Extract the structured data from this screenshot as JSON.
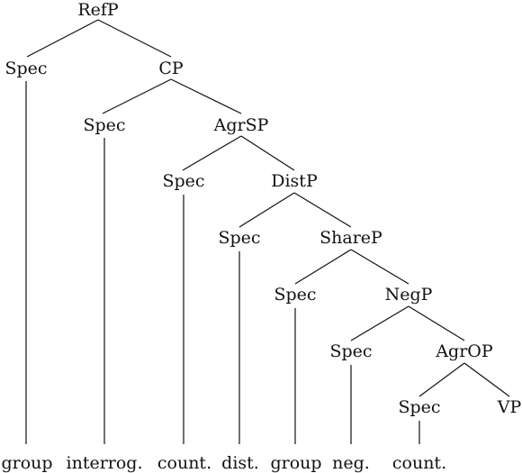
{
  "tree": {
    "nodes": {
      "refp": "RefP",
      "spec_ref": "Spec",
      "cp": "CP",
      "spec_cp": "Spec",
      "agrsp": "AgrSP",
      "spec_agrs": "Spec",
      "distp": "DistP",
      "spec_dist": "Spec",
      "sharep": "ShareP",
      "spec_share": "Spec",
      "negp": "NegP",
      "spec_neg": "Spec",
      "agrop": "AgrOP",
      "spec_agro": "Spec",
      "vp": "VP"
    },
    "leaves": {
      "spec_ref": "group",
      "spec_cp": "interrog.",
      "spec_agrs": "count.",
      "spec_dist": "dist.",
      "spec_share": "group",
      "spec_neg": "neg.",
      "spec_agro": "count."
    }
  }
}
